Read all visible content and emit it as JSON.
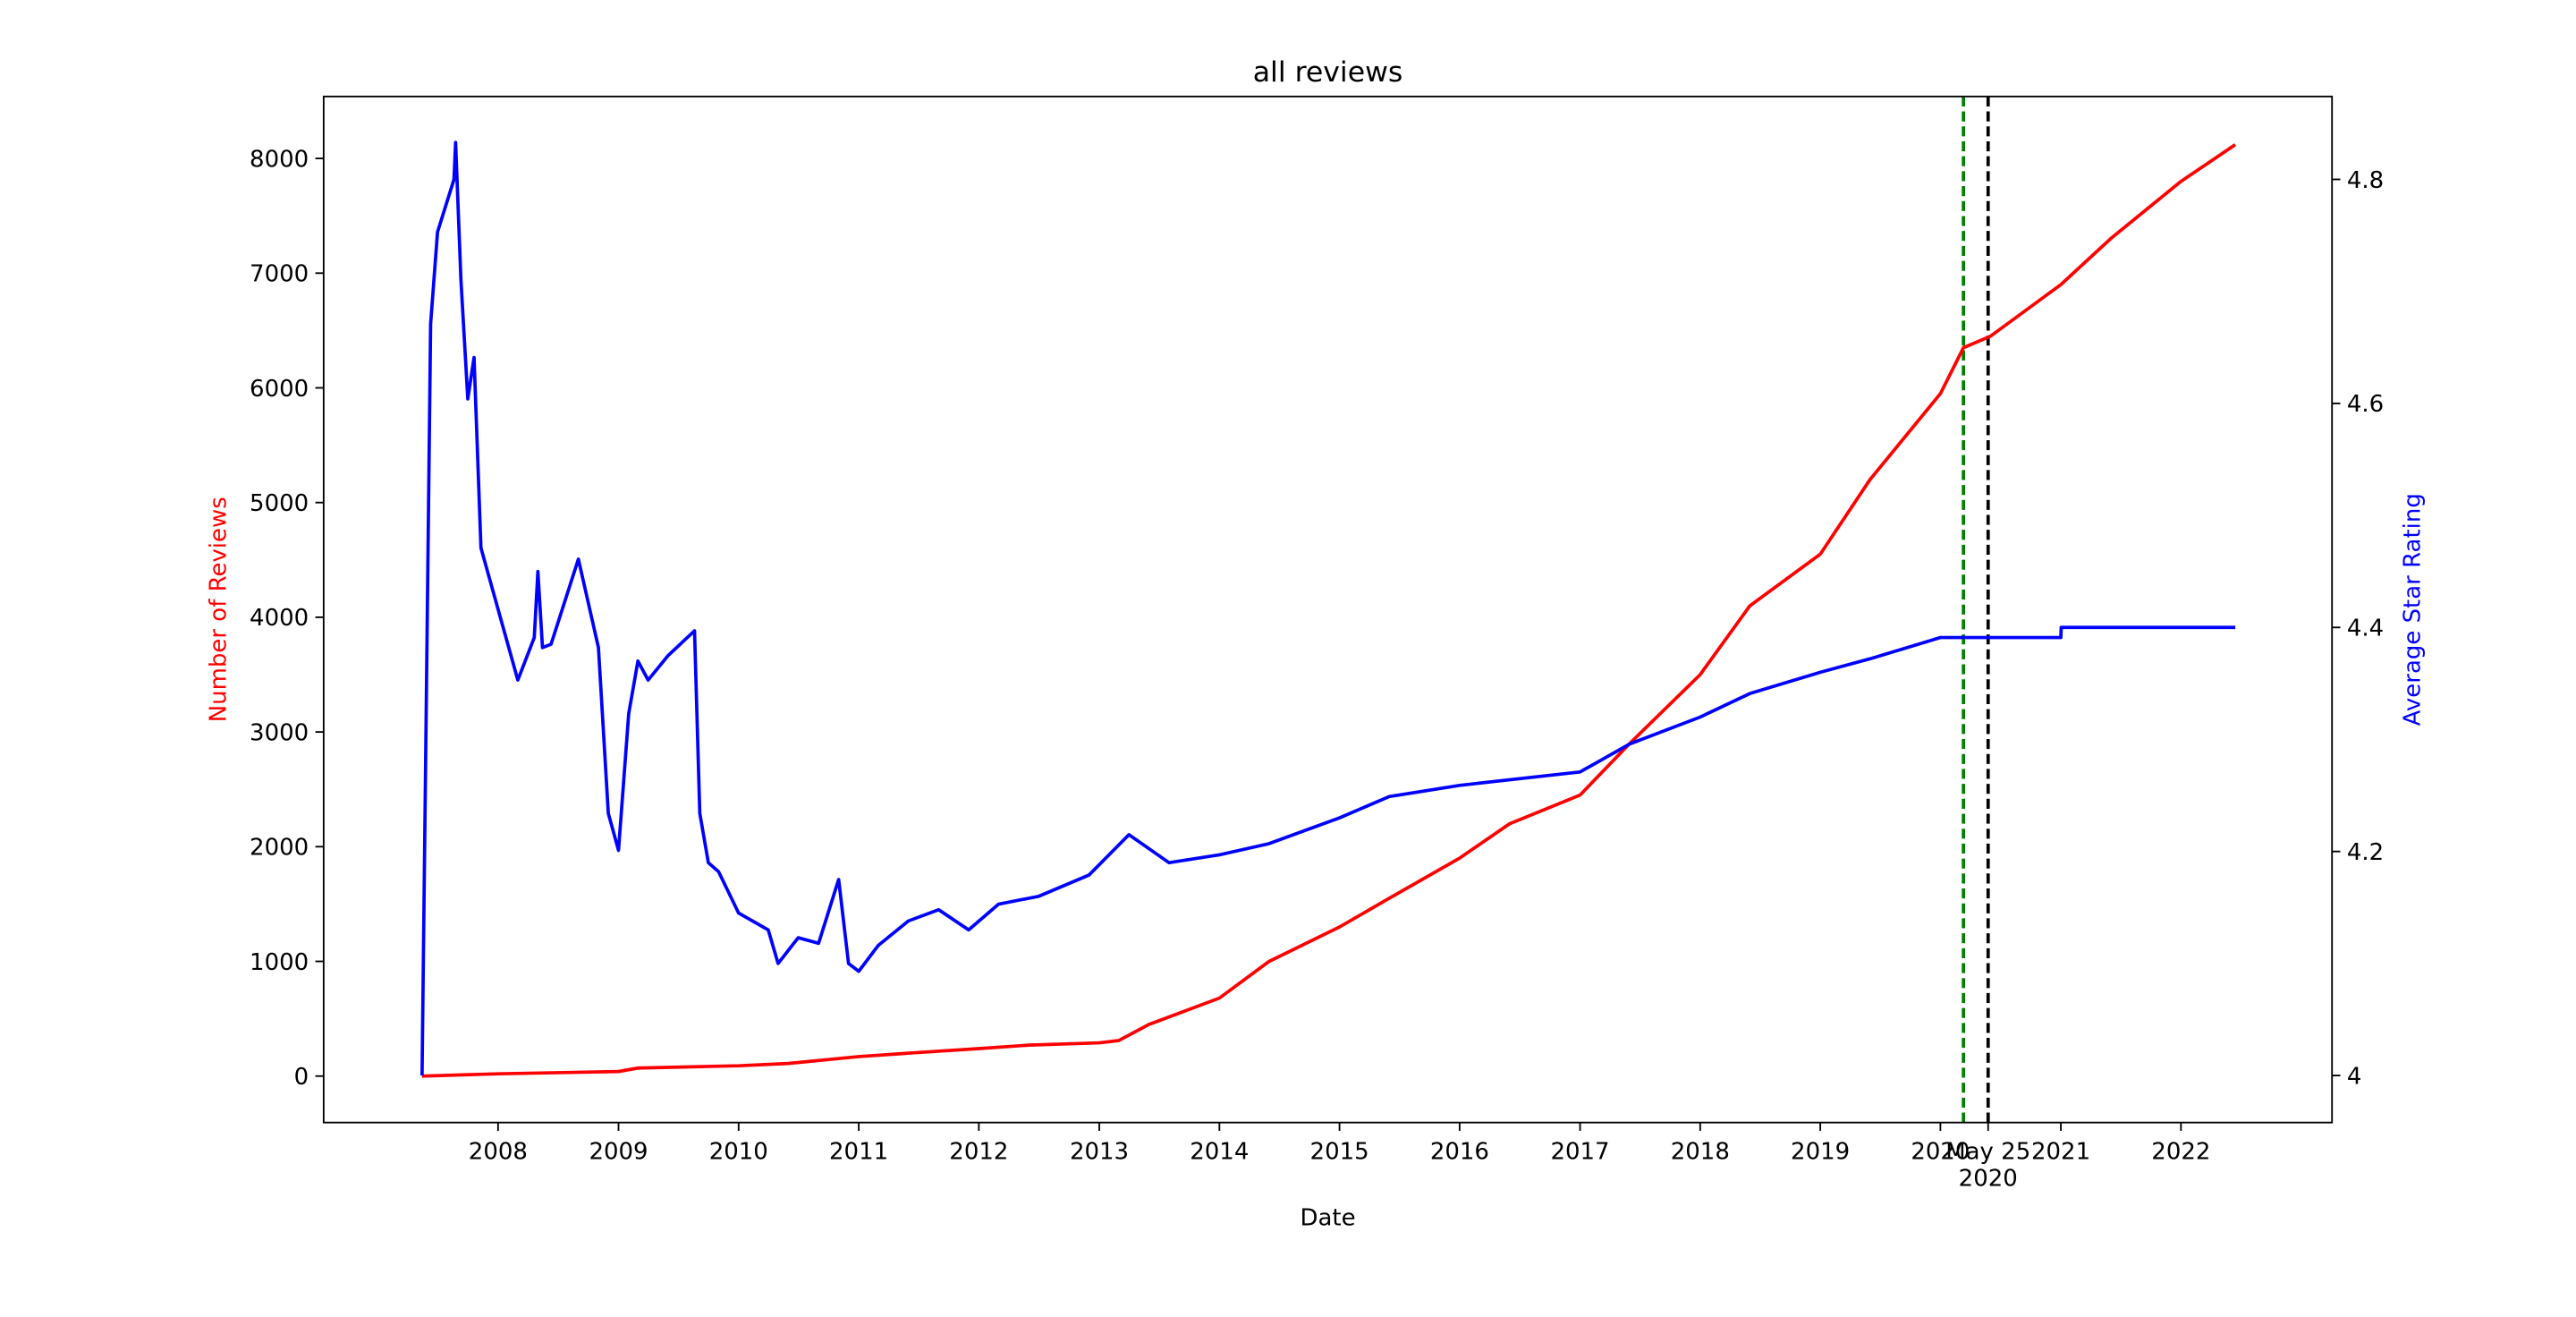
{
  "chart_data": {
    "type": "line",
    "title": "all reviews",
    "xlabel": "Date",
    "ylabel": "Number of Reviews",
    "y2label": "Average Star Rating",
    "ylabel_color": "red",
    "y2label_color": "blue",
    "xlim": [
      "2006-07-20",
      "2023-04-05"
    ],
    "ylim": [
      -405,
      8540
    ],
    "y2lim": [
      3.958,
      4.874
    ],
    "xticks": [
      {
        "value": "2008-01-01",
        "label": "2008"
      },
      {
        "value": "2009-01-01",
        "label": "2009"
      },
      {
        "value": "2010-01-01",
        "label": "2010"
      },
      {
        "value": "2011-01-01",
        "label": "2011"
      },
      {
        "value": "2012-01-01",
        "label": "2012"
      },
      {
        "value": "2013-01-01",
        "label": "2013"
      },
      {
        "value": "2014-01-01",
        "label": "2014"
      },
      {
        "value": "2015-01-01",
        "label": "2015"
      },
      {
        "value": "2016-01-01",
        "label": "2016"
      },
      {
        "value": "2017-01-01",
        "label": "2017"
      },
      {
        "value": "2018-01-01",
        "label": "2018"
      },
      {
        "value": "2019-01-01",
        "label": "2019"
      },
      {
        "value": "2020-01-01",
        "label": "2020"
      },
      {
        "value": "2020-05-25",
        "label": "May 25\n2020"
      },
      {
        "value": "2021-01-01",
        "label": "2021"
      },
      {
        "value": "2022-01-01",
        "label": "2022"
      }
    ],
    "yticks": [
      0,
      1000,
      2000,
      3000,
      4000,
      5000,
      6000,
      7000,
      8000
    ],
    "y2ticks": [
      4.0,
      4.2,
      4.4,
      4.6,
      4.8
    ],
    "vlines": [
      {
        "x": "2020-03-11",
        "color": "green"
      },
      {
        "x": "2020-05-25",
        "color": "black"
      }
    ],
    "series": [
      {
        "name": "Number of Reviews",
        "color": "red",
        "x": [
          "2007-05-15",
          "2008-01-01",
          "2009-01-01",
          "2009-03-01",
          "2010-01-01",
          "2010-06-01",
          "2011-01-01",
          "2011-06-01",
          "2012-01-01",
          "2012-06-01",
          "2013-01-01",
          "2013-03-01",
          "2013-06-01",
          "2014-01-01",
          "2014-06-01",
          "2015-01-01",
          "2015-06-01",
          "2016-01-01",
          "2016-06-01",
          "2017-01-01",
          "2017-06-01",
          "2018-01-01",
          "2018-06-01",
          "2019-01-01",
          "2019-06-01",
          "2020-01-01",
          "2020-03-11",
          "2020-06-01",
          "2021-01-01",
          "2021-06-01",
          "2022-01-01",
          "2022-06-15"
        ],
        "values": [
          0,
          20,
          40,
          70,
          90,
          110,
          170,
          200,
          240,
          270,
          290,
          310,
          450,
          680,
          1000,
          1300,
          1550,
          1900,
          2200,
          2450,
          2900,
          3500,
          4100,
          4550,
          5200,
          5950,
          6350,
          6450,
          6900,
          7300,
          7800,
          8120
        ]
      },
      {
        "name": "Average Star Rating",
        "color": "blue",
        "axis": "y2",
        "x": [
          "2007-05-15",
          "2007-06-10",
          "2007-07-01",
          "2007-08-20",
          "2007-08-25",
          "2007-09-10",
          "2007-10-01",
          "2007-10-20",
          "2007-11-10",
          "2008-03-01",
          "2008-04-20",
          "2008-05-01",
          "2008-05-15",
          "2008-06-10",
          "2008-09-01",
          "2008-11-01",
          "2008-12-01",
          "2009-01-01",
          "2009-02-01",
          "2009-03-01",
          "2009-04-01",
          "2009-06-01",
          "2009-08-20",
          "2009-09-05",
          "2009-10-01",
          "2009-11-01",
          "2010-01-01",
          "2010-04-01",
          "2010-05-01",
          "2010-07-01",
          "2010-09-01",
          "2010-11-01",
          "2010-12-01",
          "2011-01-01",
          "2011-03-01",
          "2011-06-01",
          "2011-09-01",
          "2011-12-01",
          "2012-03-01",
          "2012-07-01",
          "2012-12-01",
          "2013-04-01",
          "2013-08-01",
          "2014-01-01",
          "2014-06-01",
          "2015-01-01",
          "2015-06-01",
          "2016-01-01",
          "2017-01-01",
          "2017-06-01",
          "2018-01-01",
          "2018-06-01",
          "2019-01-01",
          "2019-06-01",
          "2020-01-01",
          "2021-01-01",
          "2021-01-02",
          "2022-06-15"
        ],
        "values": [
          4.0,
          4.671,
          4.753,
          4.8,
          4.833,
          4.711,
          4.604,
          4.641,
          4.471,
          4.353,
          4.391,
          4.45,
          4.382,
          4.385,
          4.461,
          4.382,
          4.234,
          4.201,
          4.323,
          4.37,
          4.353,
          4.375,
          4.397,
          4.234,
          4.19,
          4.182,
          4.145,
          4.13,
          4.1,
          4.123,
          4.118,
          4.175,
          4.1,
          4.093,
          4.116,
          4.138,
          4.148,
          4.13,
          4.153,
          4.16,
          4.179,
          4.215,
          4.19,
          4.197,
          4.207,
          4.23,
          4.249,
          4.259,
          4.271,
          4.296,
          4.32,
          4.341,
          4.36,
          4.372,
          4.391,
          4.391,
          4.4,
          4.4
        ]
      }
    ]
  }
}
